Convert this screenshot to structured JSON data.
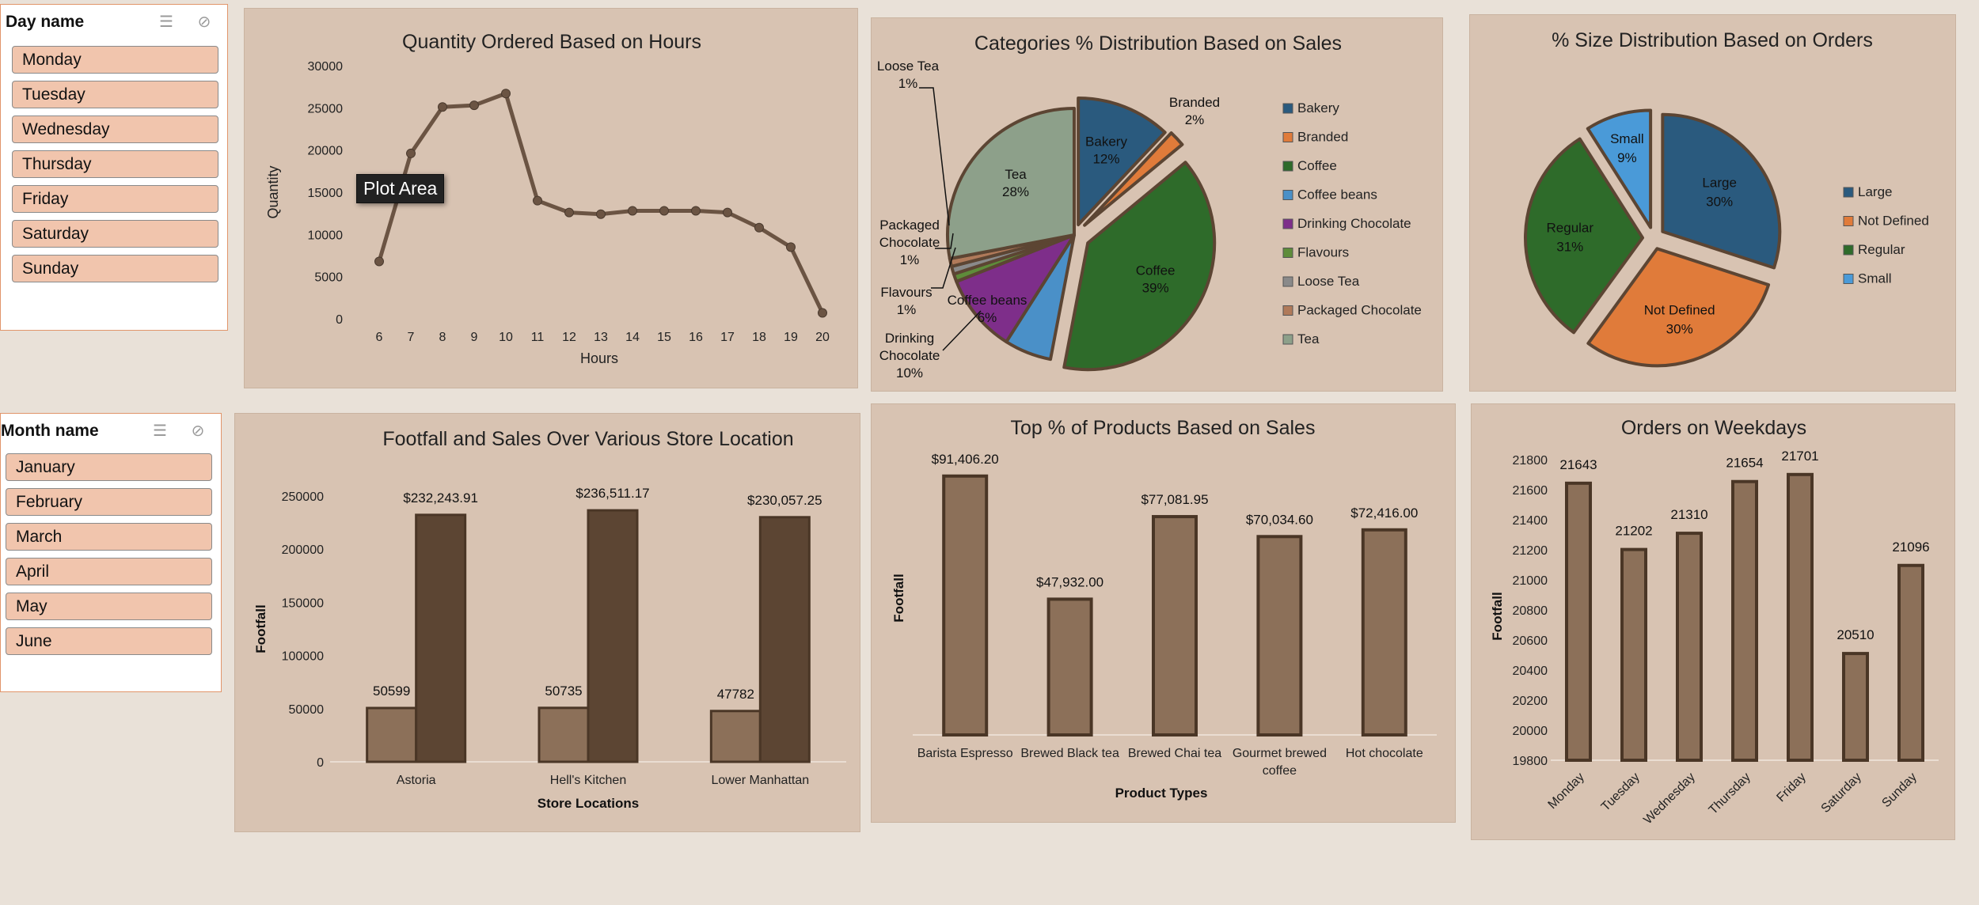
{
  "slicers": {
    "day": {
      "title": "Day name",
      "items": [
        "Monday",
        "Tuesday",
        "Wednesday",
        "Thursday",
        "Friday",
        "Saturday",
        "Sunday"
      ]
    },
    "month": {
      "title": "Month name",
      "items": [
        "January",
        "February",
        "March",
        "April",
        "May",
        "June"
      ]
    }
  },
  "tooltip": "Plot Area",
  "colors": {
    "panel": "#d8c3b2",
    "bar_light": "#8c7059",
    "bar_dark": "#5c4533",
    "line": "#6b5443",
    "slicer_item": "#f1c5ad",
    "slicer_border": "#e1956a"
  },
  "chart_data": [
    {
      "id": "hours",
      "type": "line",
      "title": "Quantity Ordered Based on Hours",
      "xlabel": "Hours",
      "ylabel": "Quantity",
      "ylim": [
        0,
        30000
      ],
      "yticks": [
        0,
        5000,
        10000,
        15000,
        20000,
        25000,
        30000
      ],
      "x": [
        6,
        7,
        8,
        9,
        10,
        11,
        12,
        13,
        14,
        15,
        16,
        17,
        18,
        19,
        20
      ],
      "values": [
        6800,
        19600,
        25100,
        25300,
        26700,
        14000,
        12600,
        12400,
        12800,
        12800,
        12800,
        12600,
        10800,
        8500,
        700
      ]
    },
    {
      "id": "categories",
      "type": "pie",
      "title": "Categories % Distribution Based on Sales",
      "slices": [
        {
          "label": "Bakery",
          "value": 12,
          "color": "#2a5a7e"
        },
        {
          "label": "Branded",
          "value": 2,
          "color": "#e07b3a"
        },
        {
          "label": "Coffee",
          "value": 39,
          "color": "#2e6b2a"
        },
        {
          "label": "Coffee beans",
          "value": 6,
          "color": "#4a90c8"
        },
        {
          "label": "Drinking Chocolate",
          "value": 10,
          "color": "#7e2e8a"
        },
        {
          "label": "Flavours",
          "value": 1,
          "color": "#5e8c3a"
        },
        {
          "label": "Loose Tea",
          "value": 1,
          "color": "#8a8a8a"
        },
        {
          "label": "Packaged Chocolate",
          "value": 1,
          "color": "#b07a5a"
        },
        {
          "label": "Tea",
          "value": 28,
          "color": "#8da08a"
        }
      ],
      "data_labels": [
        {
          "name": "Bakery",
          "pct": "12%"
        },
        {
          "name": "Branded",
          "pct": "2%"
        },
        {
          "name": "Coffee",
          "pct": "39%"
        },
        {
          "name": "Coffee beans",
          "pct": "6%"
        },
        {
          "name": "Drinking Chocolate",
          "pct": "10%"
        },
        {
          "name": "Flavours",
          "pct": "1%"
        },
        {
          "name": "Loose Tea",
          "pct": "1%"
        },
        {
          "name": "Packaged Chocolate",
          "pct": "1%"
        },
        {
          "name": "Tea",
          "pct": "28%"
        }
      ],
      "legend": [
        "Bakery",
        "Branded",
        "Coffee",
        "Coffee beans",
        "Drinking Chocolate",
        "Flavours",
        "Loose Tea",
        "Packaged Chocolate",
        "Tea"
      ],
      "legend_position": "right"
    },
    {
      "id": "size",
      "type": "pie",
      "title": "% Size Distribution Based on Orders",
      "slices": [
        {
          "label": "Large",
          "value": 30,
          "color": "#2a5a7e"
        },
        {
          "label": "Not Defined",
          "value": 30,
          "color": "#e07b3a"
        },
        {
          "label": "Regular",
          "value": 31,
          "color": "#2e6b2a"
        },
        {
          "label": "Small",
          "value": 9,
          "color": "#4a9ad8"
        }
      ],
      "data_labels": [
        {
          "name": "Large",
          "pct": "30%"
        },
        {
          "name": "Not Defined",
          "pct": "30%"
        },
        {
          "name": "Regular",
          "pct": "31%"
        },
        {
          "name": "Small",
          "pct": "9%"
        }
      ],
      "legend": [
        "Large",
        "Not Defined",
        "Regular",
        "Small"
      ],
      "legend_position": "right"
    },
    {
      "id": "stores",
      "type": "bar",
      "title": "Footfall and Sales Over Various Store Location",
      "xlabel": "Store Locations",
      "ylabel": "Footfall",
      "ylim": [
        0,
        250000
      ],
      "yticks": [
        0,
        50000,
        100000,
        150000,
        200000,
        250000
      ],
      "categories": [
        "Astoria",
        "Hell's Kitchen",
        "Lower Manhattan"
      ],
      "series": [
        {
          "values": [
            50599,
            50735,
            47782
          ],
          "labels": [
            "50599",
            "50735",
            "47782"
          ]
        },
        {
          "values": [
            232243.91,
            236511.17,
            230057.25
          ],
          "labels": [
            "$232,243.91",
            "$236,511.17",
            "$230,057.25"
          ]
        }
      ]
    },
    {
      "id": "products",
      "type": "bar",
      "title": "Top % of Products Based on Sales",
      "xlabel": "Product Types",
      "ylabel": "Footfall",
      "ylim": [
        0,
        100000
      ],
      "categories": [
        "Barista Espresso",
        "Brewed Black tea",
        "Brewed Chai tea",
        "Gourmet brewed coffee",
        "Hot chocolate"
      ],
      "values": [
        91406.2,
        47932.0,
        77081.95,
        70034.6,
        72416.0
      ],
      "labels": [
        "$91,406.20",
        "$47,932.00",
        "$77,081.95",
        "$70,034.60",
        "$72,416.00"
      ]
    },
    {
      "id": "weekdays",
      "type": "bar",
      "title": "Orders on Weekdays",
      "ylabel": "Footfall",
      "ylim": [
        19800,
        21800
      ],
      "yticks": [
        19800,
        20000,
        20200,
        20400,
        20600,
        20800,
        21000,
        21200,
        21400,
        21600,
        21800
      ],
      "categories": [
        "Monday",
        "Tuesday",
        "Wednesday",
        "Thursday",
        "Friday",
        "Saturday",
        "Sunday"
      ],
      "values": [
        21643,
        21202,
        21310,
        21654,
        21701,
        20510,
        21096
      ],
      "labels": [
        "21643",
        "21202",
        "21310",
        "21654",
        "21701",
        "20510",
        "21096"
      ]
    }
  ]
}
